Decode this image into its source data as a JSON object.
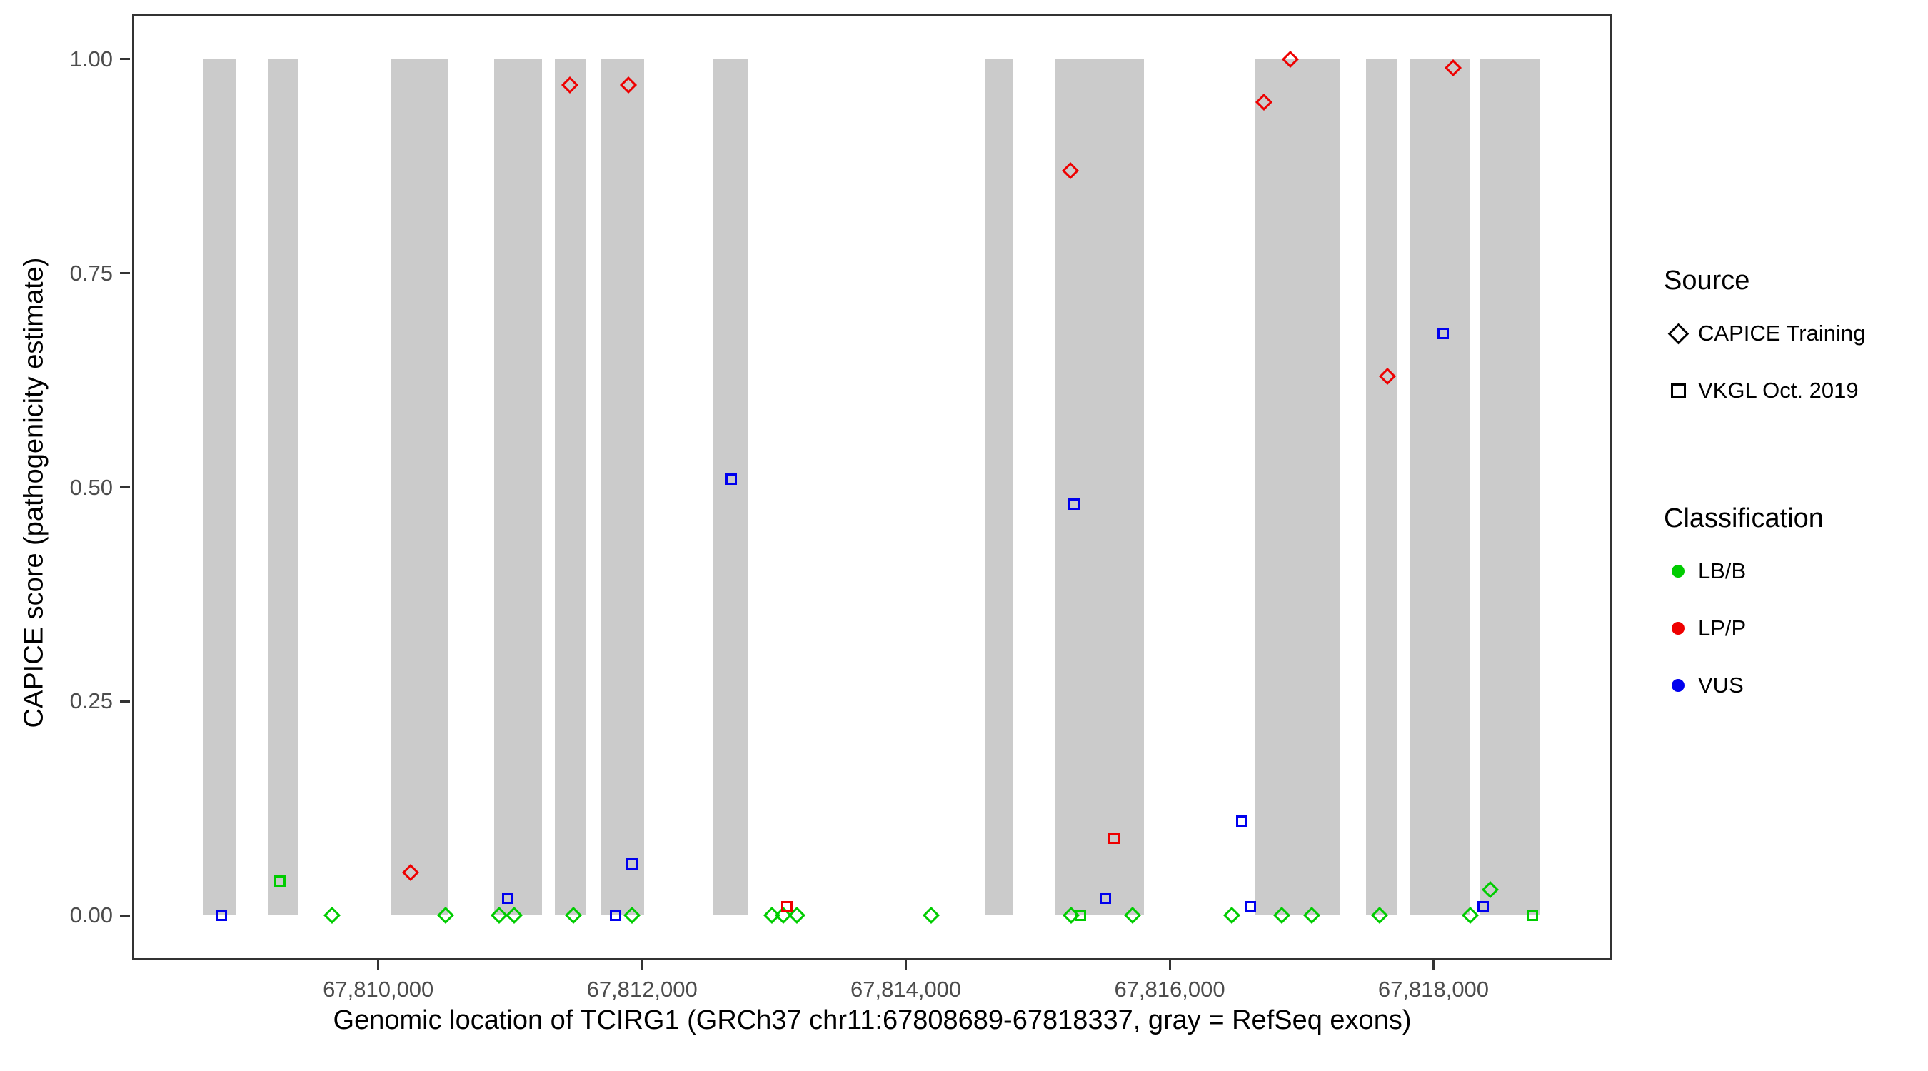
{
  "chart_data": {
    "type": "scatter",
    "title": "",
    "xlabel": "Genomic location of TCIRG1 (GRCh37 chr11:67808689-67818337, gray = RefSeq exons)",
    "ylabel": "CAPICE score (pathogenicity estimate)",
    "x_domain": [
      67808150,
      67819340
    ],
    "y_domain": [
      -0.05,
      1.05
    ],
    "grid": "off",
    "x_ticks": [
      {
        "value": 67810000,
        "label": "67,810,000"
      },
      {
        "value": 67812000,
        "label": "67,812,000"
      },
      {
        "value": 67814000,
        "label": "67,814,000"
      },
      {
        "value": 67816000,
        "label": "67,816,000"
      },
      {
        "value": 67818000,
        "label": "67,818,000"
      }
    ],
    "y_ticks": [
      {
        "value": 0.0,
        "label": "0.00"
      },
      {
        "value": 0.25,
        "label": "0.25"
      },
      {
        "value": 0.5,
        "label": "0.50"
      },
      {
        "value": 0.75,
        "label": "0.75"
      },
      {
        "value": 1.0,
        "label": "1.00"
      }
    ],
    "exon_color": "#CBCBCB",
    "exons": [
      [
        67808672,
        67808917
      ],
      [
        67809162,
        67809397
      ],
      [
        67810094,
        67810528
      ],
      [
        67810876,
        67811243
      ],
      [
        67811338,
        67811573
      ],
      [
        67811686,
        67812016
      ],
      [
        67812534,
        67812798
      ],
      [
        67814597,
        67814814
      ],
      [
        67815134,
        67815803
      ],
      [
        67816651,
        67817292
      ],
      [
        67817489,
        67817724
      ],
      [
        67817819,
        67818280
      ],
      [
        67818356,
        67818808
      ]
    ],
    "classification_colors": {
      "LB/B": "#00CC00",
      "LP/P": "#EE0000",
      "VUS": "#0000EE"
    },
    "points": [
      {
        "x": 67810245,
        "y": 0.05,
        "source": "CAPICE Training",
        "cls": "LP/P"
      },
      {
        "x": 67811450,
        "y": 0.97,
        "source": "CAPICE Training",
        "cls": "LP/P"
      },
      {
        "x": 67811895,
        "y": 0.97,
        "source": "CAPICE Training",
        "cls": "LP/P"
      },
      {
        "x": 67815248,
        "y": 0.87,
        "source": "CAPICE Training",
        "cls": "LP/P"
      },
      {
        "x": 67816717,
        "y": 0.95,
        "source": "CAPICE Training",
        "cls": "LP/P"
      },
      {
        "x": 67816915,
        "y": 1.0,
        "source": "CAPICE Training",
        "cls": "LP/P"
      },
      {
        "x": 67817650,
        "y": 0.63,
        "source": "CAPICE Training",
        "cls": "LP/P"
      },
      {
        "x": 67818148,
        "y": 0.99,
        "source": "CAPICE Training",
        "cls": "LP/P"
      },
      {
        "x": 67809650,
        "y": 0.0,
        "source": "CAPICE Training",
        "cls": "LB/B"
      },
      {
        "x": 67810510,
        "y": 0.0,
        "source": "CAPICE Training",
        "cls": "LB/B"
      },
      {
        "x": 67810915,
        "y": 0.0,
        "source": "CAPICE Training",
        "cls": "LB/B"
      },
      {
        "x": 67811028,
        "y": 0.0,
        "source": "CAPICE Training",
        "cls": "LB/B"
      },
      {
        "x": 67811480,
        "y": 0.0,
        "source": "CAPICE Training",
        "cls": "LB/B"
      },
      {
        "x": 67811922,
        "y": 0.0,
        "source": "CAPICE Training",
        "cls": "LB/B"
      },
      {
        "x": 67812986,
        "y": 0.0,
        "source": "CAPICE Training",
        "cls": "LB/B"
      },
      {
        "x": 67813070,
        "y": 0.0,
        "source": "CAPICE Training",
        "cls": "LB/B"
      },
      {
        "x": 67813174,
        "y": 0.0,
        "source": "CAPICE Training",
        "cls": "LB/B"
      },
      {
        "x": 67814192,
        "y": 0.0,
        "source": "CAPICE Training",
        "cls": "LB/B"
      },
      {
        "x": 67815250,
        "y": 0.0,
        "source": "CAPICE Training",
        "cls": "LB/B"
      },
      {
        "x": 67815720,
        "y": 0.0,
        "source": "CAPICE Training",
        "cls": "LB/B"
      },
      {
        "x": 67816472,
        "y": 0.0,
        "source": "CAPICE Training",
        "cls": "LB/B"
      },
      {
        "x": 67816850,
        "y": 0.0,
        "source": "CAPICE Training",
        "cls": "LB/B"
      },
      {
        "x": 67817075,
        "y": 0.0,
        "source": "CAPICE Training",
        "cls": "LB/B"
      },
      {
        "x": 67817593,
        "y": 0.0,
        "source": "CAPICE Training",
        "cls": "LB/B"
      },
      {
        "x": 67818280,
        "y": 0.0,
        "source": "CAPICE Training",
        "cls": "LB/B"
      },
      {
        "x": 67818431,
        "y": 0.03,
        "source": "CAPICE Training",
        "cls": "LB/B"
      },
      {
        "x": 67808813,
        "y": 0.0,
        "source": "VKGL Oct. 2019",
        "cls": "VUS"
      },
      {
        "x": 67809256,
        "y": 0.04,
        "source": "VKGL Oct. 2019",
        "cls": "LB/B"
      },
      {
        "x": 67810980,
        "y": 0.02,
        "source": "VKGL Oct. 2019",
        "cls": "VUS"
      },
      {
        "x": 67811800,
        "y": 0.0,
        "source": "VKGL Oct. 2019",
        "cls": "VUS"
      },
      {
        "x": 67811922,
        "y": 0.06,
        "source": "VKGL Oct. 2019",
        "cls": "VUS"
      },
      {
        "x": 67812676,
        "y": 0.51,
        "source": "VKGL Oct. 2019",
        "cls": "VUS"
      },
      {
        "x": 67813100,
        "y": 0.01,
        "source": "VKGL Oct. 2019",
        "cls": "LP/P"
      },
      {
        "x": 67815276,
        "y": 0.48,
        "source": "VKGL Oct. 2019",
        "cls": "VUS"
      },
      {
        "x": 67815322,
        "y": 0.0,
        "source": "VKGL Oct. 2019",
        "cls": "LB/B"
      },
      {
        "x": 67815512,
        "y": 0.02,
        "source": "VKGL Oct. 2019",
        "cls": "VUS"
      },
      {
        "x": 67815578,
        "y": 0.09,
        "source": "VKGL Oct. 2019",
        "cls": "LP/P"
      },
      {
        "x": 67816548,
        "y": 0.11,
        "source": "VKGL Oct. 2019",
        "cls": "VUS"
      },
      {
        "x": 67816614,
        "y": 0.01,
        "source": "VKGL Oct. 2019",
        "cls": "VUS"
      },
      {
        "x": 67818073,
        "y": 0.68,
        "source": "VKGL Oct. 2019",
        "cls": "VUS"
      },
      {
        "x": 67818374,
        "y": 0.01,
        "source": "VKGL Oct. 2019",
        "cls": "VUS"
      },
      {
        "x": 67818750,
        "y": 0.0,
        "source": "VKGL Oct. 2019",
        "cls": "LB/B"
      }
    ],
    "legend": {
      "source_title": "Source",
      "source_items": [
        {
          "label": "CAPICE Training",
          "shape": "diamond"
        },
        {
          "label": "VKGL Oct. 2019",
          "shape": "square"
        }
      ],
      "classification_title": "Classification",
      "classification_items": [
        {
          "label": "LB/B",
          "color": "#00CC00"
        },
        {
          "label": "LP/P",
          "color": "#EE0000"
        },
        {
          "label": "VUS",
          "color": "#0000EE"
        }
      ]
    }
  }
}
